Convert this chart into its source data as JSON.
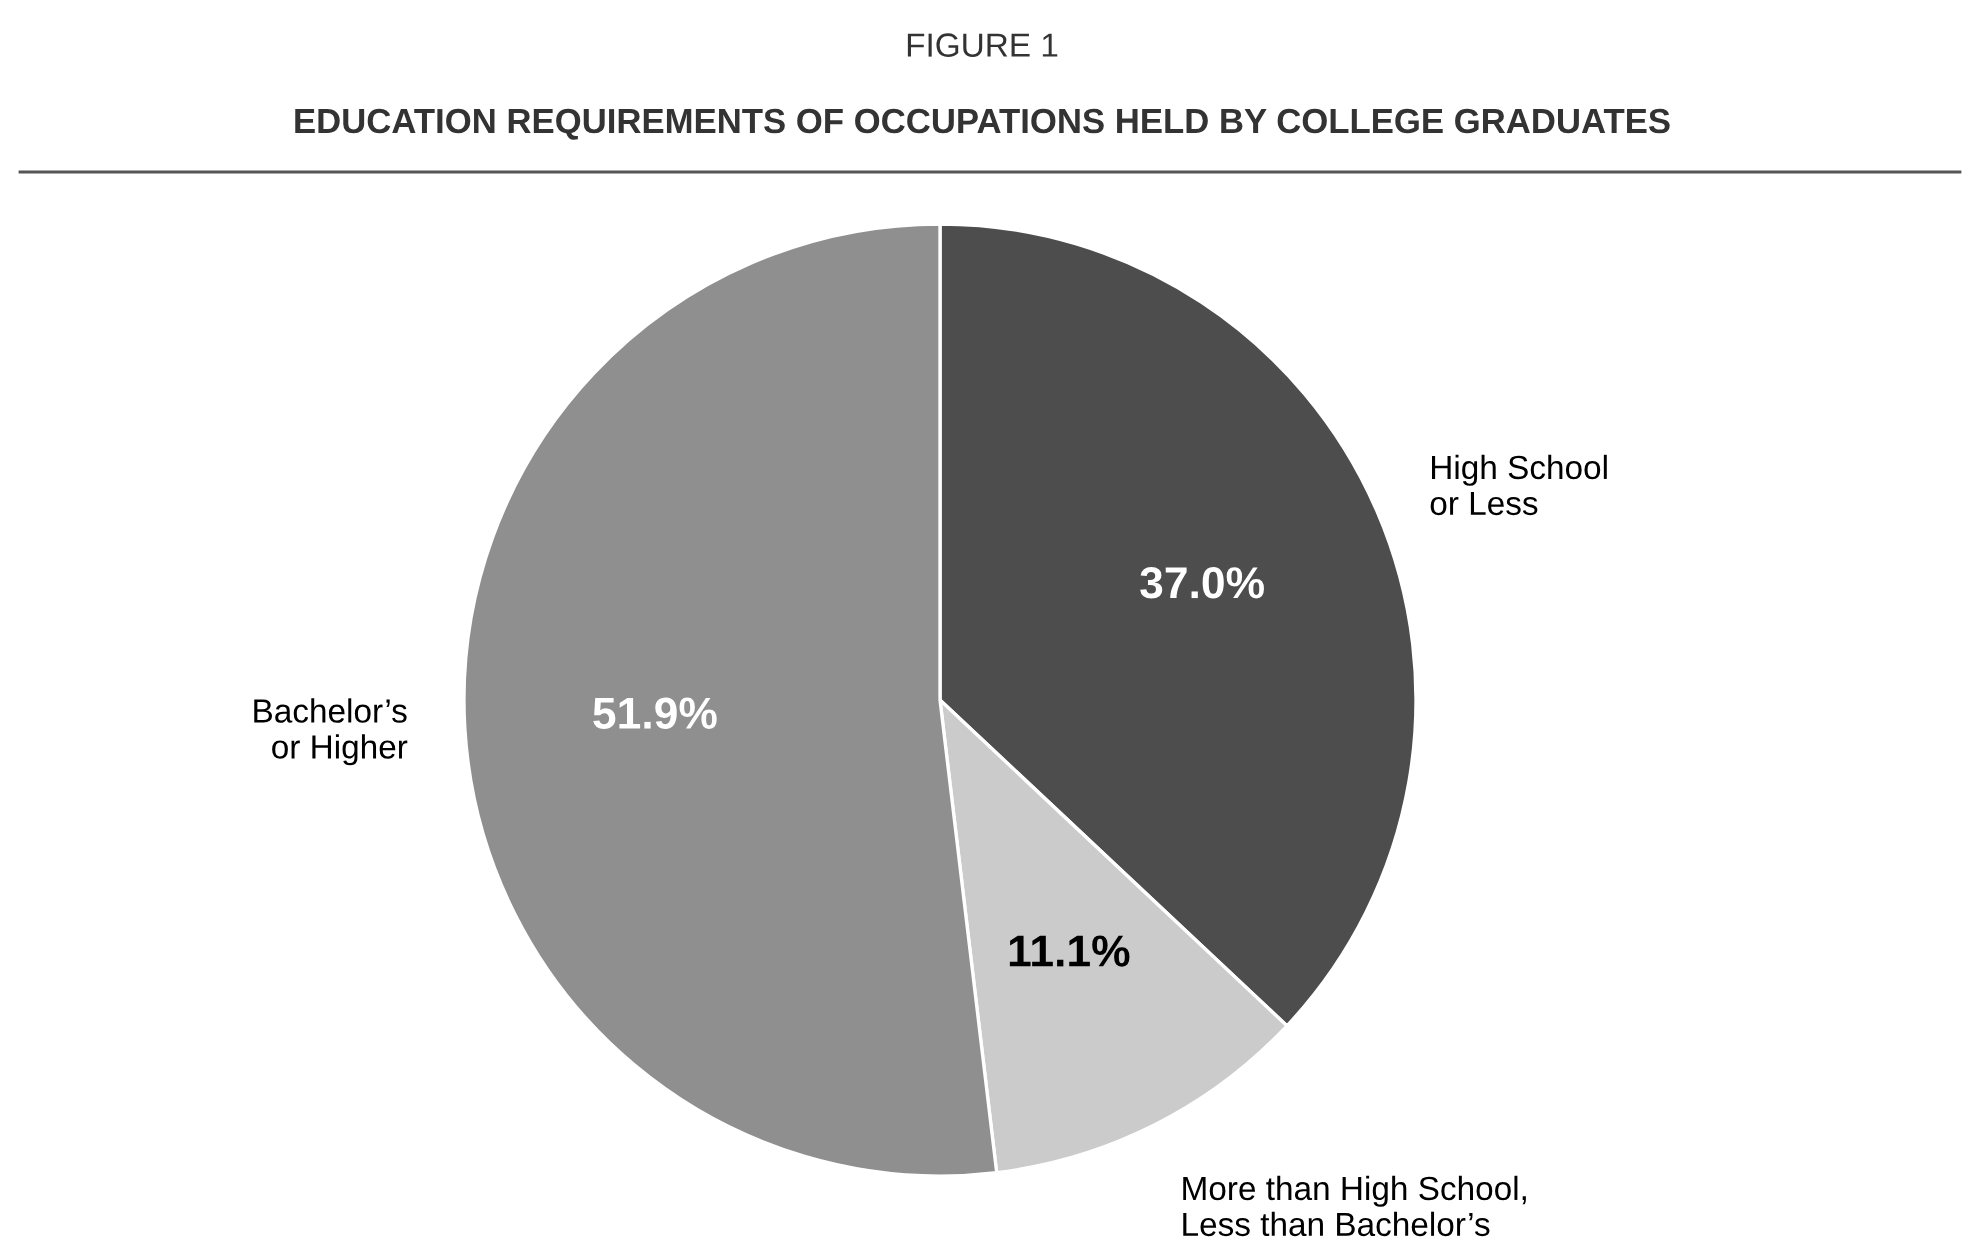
{
  "chart_data": {
    "type": "pie",
    "title": "FIGURE 1",
    "subtitle": "EDUCATION REQUIREMENTS OF OCCUPATIONS HELD BY COLLEGE GRADUATES",
    "categories": [
      "High School\nor Less",
      "More than High School,\nLess than Bachelor’s",
      "Bachelor’s\nor Higher"
    ],
    "values": [
      37.0,
      11.1,
      51.9
    ],
    "value_labels": [
      "37.0%",
      "11.1%",
      "51.9%"
    ],
    "colors": [
      "#4d4d4d",
      "#cbcbcb",
      "#8f8f8f"
    ],
    "legend": false
  }
}
